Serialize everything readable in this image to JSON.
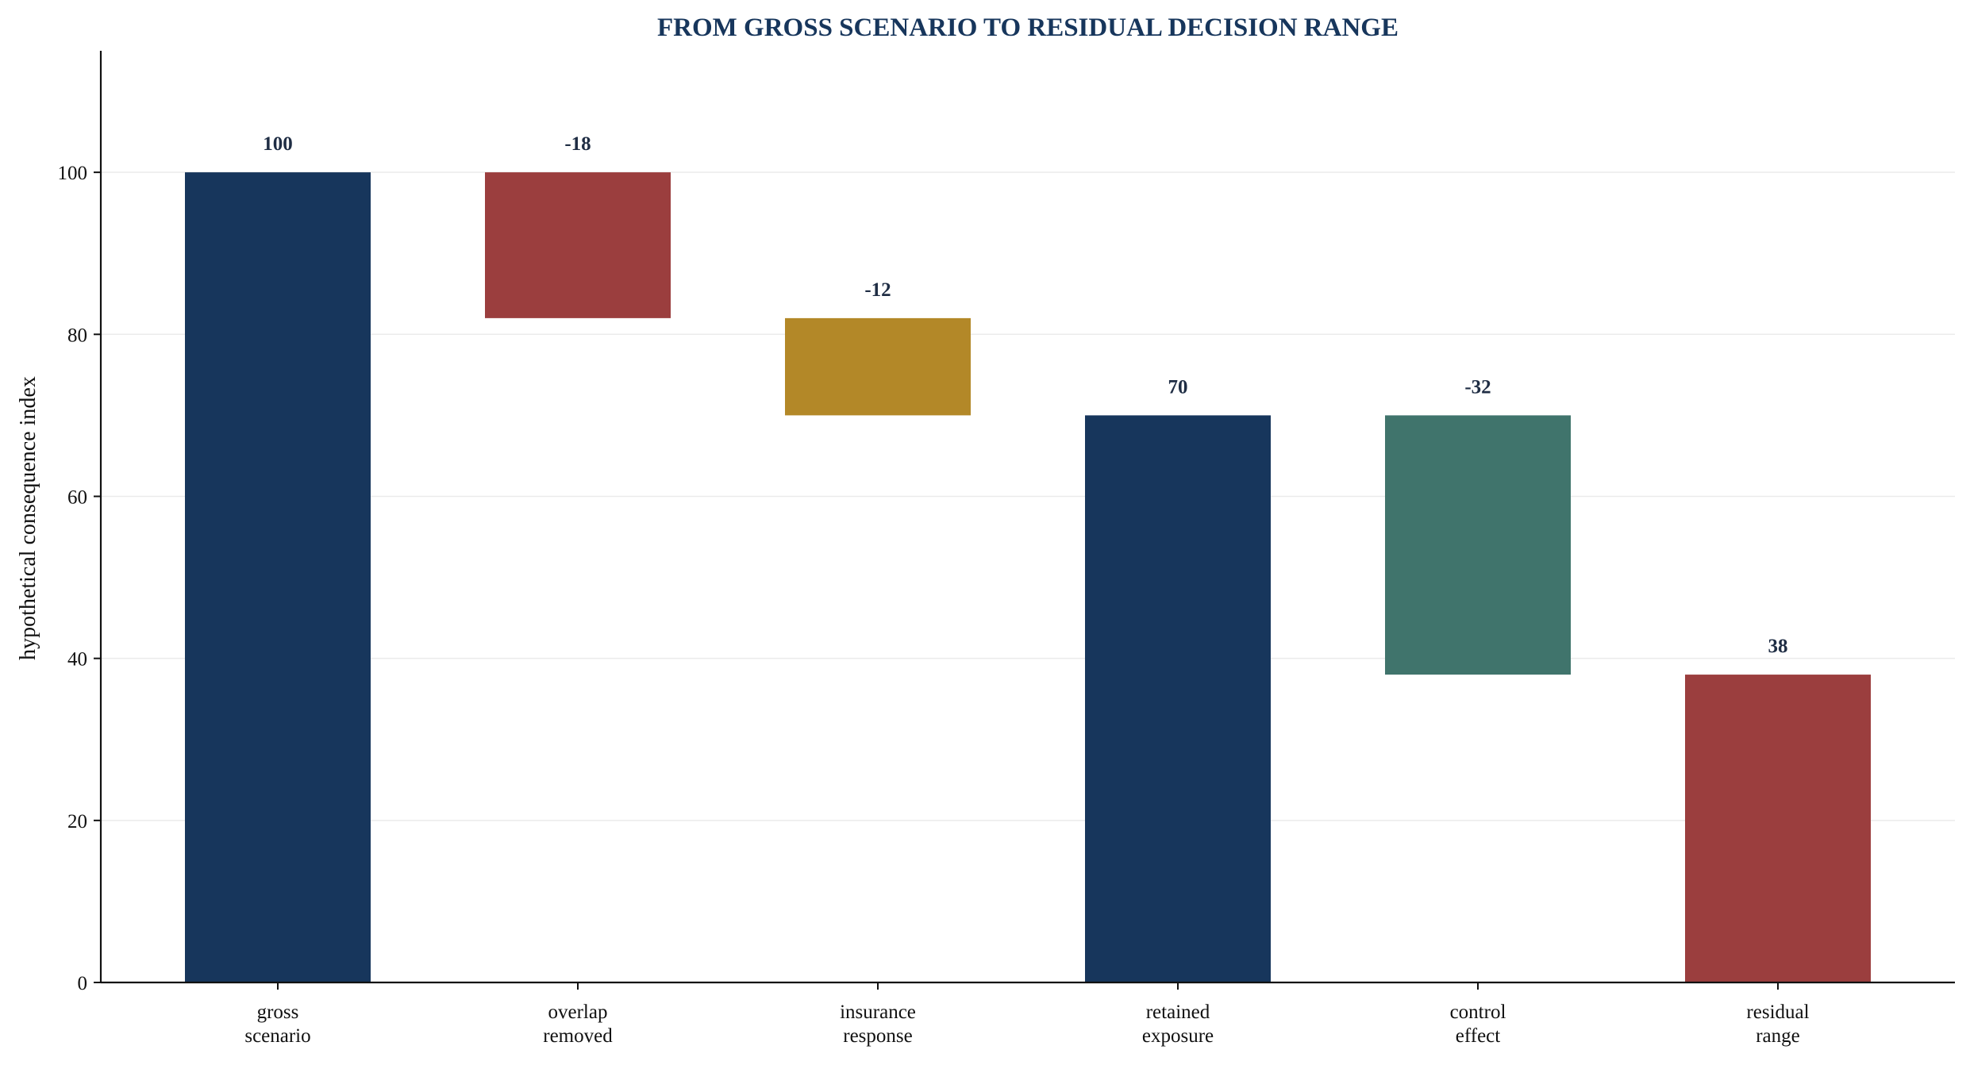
{
  "chart_data": {
    "type": "bar",
    "subtype": "waterfall",
    "title": "FROM GROSS SCENARIO TO RESIDUAL DECISION RANGE",
    "xlabel": "",
    "ylabel": "hypothetical consequence index",
    "ylim": [
      0,
      115
    ],
    "yticks": [
      0,
      20,
      40,
      60,
      80,
      100
    ],
    "grid": "horizontal",
    "categories": [
      [
        "gross",
        "scenario"
      ],
      [
        "overlap",
        "removed"
      ],
      [
        "insurance",
        "response"
      ],
      [
        "retained",
        "exposure"
      ],
      [
        "control",
        "effect"
      ],
      [
        "residual",
        "range"
      ]
    ],
    "bars": [
      {
        "bottom": 0,
        "top": 100,
        "label": "100",
        "color": "#17365c"
      },
      {
        "bottom": 82,
        "top": 100,
        "label": "-18",
        "color": "#9b3e3e"
      },
      {
        "bottom": 70,
        "top": 82,
        "label": "-12",
        "color": "#b38828"
      },
      {
        "bottom": 0,
        "top": 70,
        "label": "70",
        "color": "#17365c"
      },
      {
        "bottom": 38,
        "top": 70,
        "label": "-32",
        "color": "#40746c"
      },
      {
        "bottom": 0,
        "top": 38,
        "label": "38",
        "color": "#9b3e3e"
      }
    ],
    "title_color": "#17365c",
    "label_color": "#1f2d44"
  }
}
